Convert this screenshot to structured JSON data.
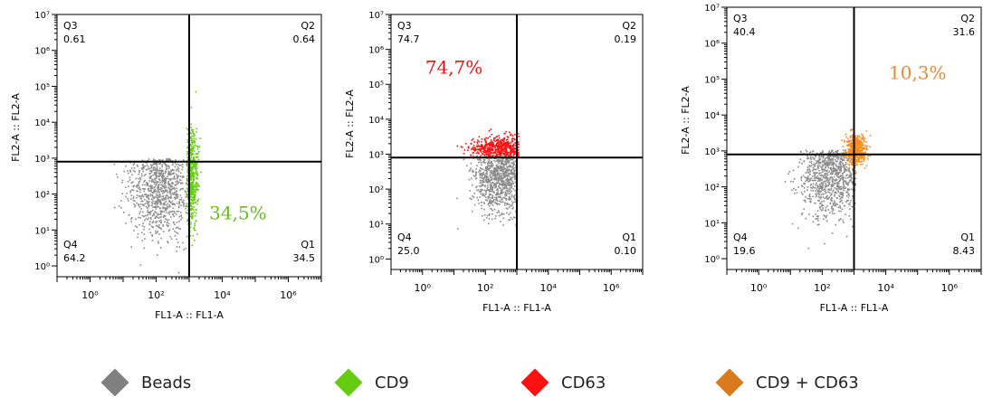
{
  "chart_data": [
    {
      "type": "scatter",
      "xlabel": "FL1-A :: FL1-A",
      "ylabel": "FL2-A :: FL2-A",
      "xscale": "log",
      "yscale": "log",
      "xlim": [
        0.1,
        10000000
      ],
      "ylim": [
        0.5,
        10000000
      ],
      "x_ticks": [
        "10^0",
        "10^2",
        "10^4",
        "10^6"
      ],
      "y_ticks": [
        "10^0",
        "10^1",
        "10^2",
        "10^3",
        "10^4",
        "10^5",
        "10^6",
        "10^7"
      ],
      "gate": {
        "x": 1000,
        "y": 800
      },
      "quadrants": [
        {
          "name": "Q3",
          "value": "0.61"
        },
        {
          "name": "Q2",
          "value": "0.64"
        },
        {
          "name": "Q4",
          "value": "64.2"
        },
        {
          "name": "Q1",
          "value": "34.5"
        }
      ],
      "annotation": {
        "text": "34,5%",
        "color": "#66bb22",
        "x": 30000,
        "y": 20
      },
      "series": [
        {
          "name": "Beads",
          "color": "#8a8a8a",
          "center_log": [
            2.1,
            2.3
          ],
          "spread_log": [
            0.5,
            0.75
          ],
          "max_x": 1000,
          "max_y": 1000
        },
        {
          "name": "CD9",
          "color": "#66cc11",
          "center_log": [
            3.05,
            2.5
          ],
          "spread_log": [
            0.1,
            0.65
          ],
          "min_x": 800
        }
      ]
    },
    {
      "type": "scatter",
      "xlabel": "FL1-A :: FL1-A",
      "ylabel": "FL2-A :: FL2-A",
      "xscale": "log",
      "yscale": "log",
      "xlim": [
        0.1,
        10000000
      ],
      "ylim": [
        0.5,
        10000000
      ],
      "x_ticks": [
        "10^0",
        "10^2",
        "10^4",
        "10^6"
      ],
      "y_ticks": [
        "10^0",
        "10^1",
        "10^2",
        "10^3",
        "10^4",
        "10^5",
        "10^6",
        "10^7"
      ],
      "gate": {
        "x": 1000,
        "y": 800
      },
      "quadrants": [
        {
          "name": "Q3",
          "value": "74.7"
        },
        {
          "name": "Q2",
          "value": "0.19"
        },
        {
          "name": "Q4",
          "value": "25.0"
        },
        {
          "name": "Q1",
          "value": "0.10"
        }
      ],
      "annotation": {
        "text": "74,7%",
        "color": "#ee1111",
        "x": 10,
        "y": 200000
      },
      "series": [
        {
          "name": "Beads",
          "color": "#8a8a8a",
          "center_log": [
            2.4,
            2.5
          ],
          "spread_log": [
            0.4,
            0.6
          ],
          "max_x": 1000,
          "max_y": 1000
        },
        {
          "name": "CD63",
          "color": "#ff1111",
          "center_log": [
            2.4,
            3.2
          ],
          "spread_log": [
            0.45,
            0.15
          ],
          "min_y": 800,
          "max_x": 1100
        }
      ]
    },
    {
      "type": "scatter",
      "xlabel": "FL1-A :: FL1-A",
      "ylabel": "FL2-A :: FL2-A",
      "xscale": "log",
      "yscale": "log",
      "xlim": [
        0.1,
        10000000
      ],
      "ylim": [
        0.5,
        10000000
      ],
      "x_ticks": [
        "10^0",
        "10^2",
        "10^4",
        "10^6"
      ],
      "y_ticks": [
        "10^0",
        "10^1",
        "10^2",
        "10^3",
        "10^4",
        "10^5",
        "10^6",
        "10^7"
      ],
      "gate": {
        "x": 1000,
        "y": 800
      },
      "quadrants": [
        {
          "name": "Q3",
          "value": "40.4"
        },
        {
          "name": "Q2",
          "value": "31.6"
        },
        {
          "name": "Q4",
          "value": "19.6"
        },
        {
          "name": "Q1",
          "value": "8.43"
        }
      ],
      "annotation": {
        "text": "10,3%",
        "color": "#ee8833",
        "x": 100000,
        "y": 100000
      },
      "series": [
        {
          "name": "Beads",
          "color": "#8a8a8a",
          "center_log": [
            2.3,
            2.4
          ],
          "spread_log": [
            0.5,
            0.6
          ],
          "max_x": 1100,
          "max_y": 1100
        },
        {
          "name": "CD9 + CD63",
          "color": "#ff8c1a",
          "center_log": [
            3.05,
            3.05
          ],
          "spread_log": [
            0.15,
            0.2
          ],
          "min_x": 300,
          "min_y": 200
        }
      ]
    }
  ],
  "legend": [
    {
      "label": "Beads",
      "color": "#808080"
    },
    {
      "label": "CD9",
      "color": "#66cc11"
    },
    {
      "label": "CD63",
      "color": "#ff1111"
    },
    {
      "label": "CD9 + CD63",
      "color": "#d97a1c"
    }
  ]
}
